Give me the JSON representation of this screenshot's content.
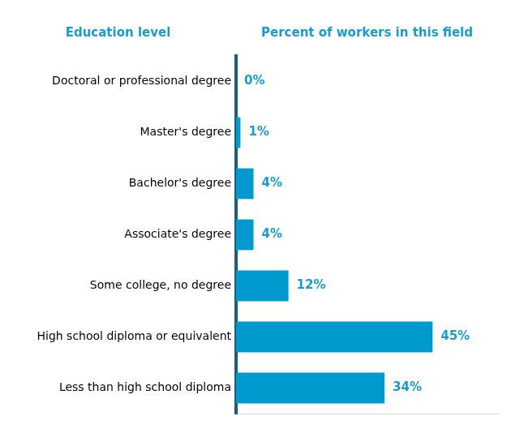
{
  "chart_data": {
    "type": "bar",
    "orientation": "horizontal",
    "ylabel": "Education level",
    "xlabel": "Percent of workers in this field",
    "categories": [
      "Doctoral or professional degree",
      "Master's degree",
      "Bachelor's degree",
      "Associate's degree",
      "Some college, no degree",
      "High school diploma or equivalent",
      "Less than high school diploma"
    ],
    "values": [
      0,
      1,
      4,
      4,
      12,
      45,
      34
    ],
    "value_labels": [
      "0%",
      "1%",
      "4%",
      "4%",
      "12%",
      "45%",
      "34%"
    ],
    "data_labels": true,
    "color": "#009ace",
    "xlim": [
      0,
      60
    ],
    "grid": false,
    "tick_labels": "y"
  }
}
